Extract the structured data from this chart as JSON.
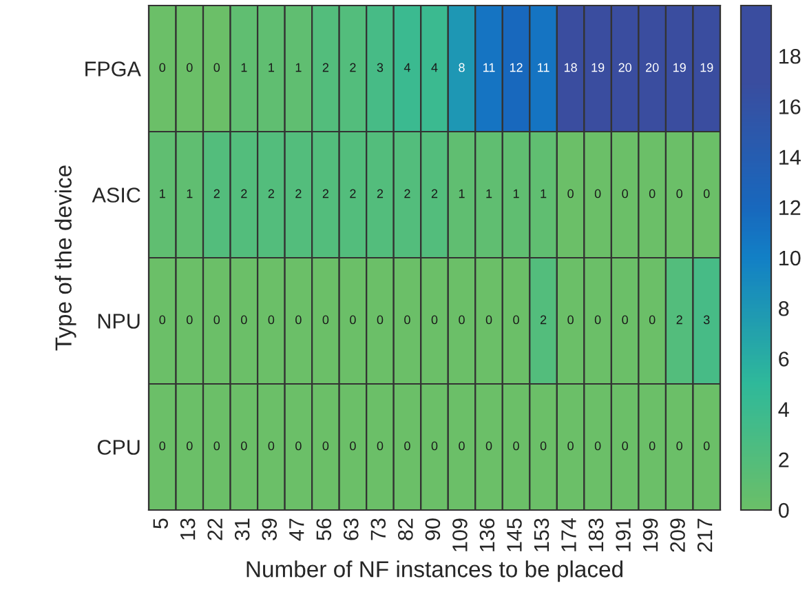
{
  "chart_data": {
    "type": "heatmap",
    "xlabel": "Number of NF instances to be placed",
    "ylabel": "Type of the device",
    "categories": [
      "5",
      "13",
      "22",
      "31",
      "39",
      "47",
      "56",
      "63",
      "73",
      "82",
      "90",
      "109",
      "136",
      "145",
      "153",
      "174",
      "183",
      "191",
      "199",
      "209",
      "217"
    ],
    "y_categories": [
      "FPGA",
      "ASIC",
      "NPU",
      "CPU"
    ],
    "cells": [
      [
        0,
        0,
        0,
        1,
        1,
        1,
        2,
        2,
        3,
        4,
        4,
        8,
        11,
        12,
        11,
        18,
        19,
        20,
        20,
        19,
        19
      ],
      [
        1,
        1,
        2,
        2,
        2,
        2,
        2,
        2,
        2,
        2,
        2,
        1,
        1,
        1,
        1,
        0,
        0,
        0,
        0,
        0,
        0
      ],
      [
        0,
        0,
        0,
        0,
        0,
        0,
        0,
        0,
        0,
        0,
        0,
        0,
        0,
        0,
        2,
        0,
        0,
        0,
        0,
        2,
        3
      ],
      [
        0,
        0,
        0,
        0,
        0,
        0,
        0,
        0,
        0,
        0,
        0,
        0,
        0,
        0,
        0,
        0,
        0,
        0,
        0,
        0,
        0
      ]
    ],
    "data_labels": true,
    "clim": [
      0,
      20
    ],
    "cticks": [
      0,
      2,
      4,
      6,
      8,
      10,
      12,
      14,
      16,
      18
    ]
  }
}
